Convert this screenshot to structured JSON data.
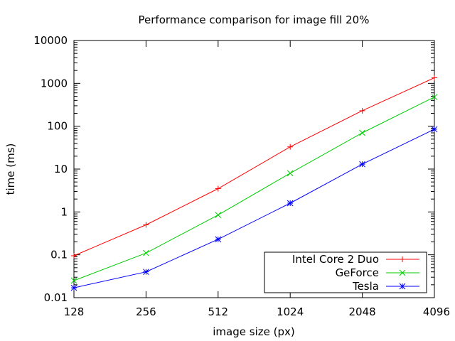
{
  "chart_data": {
    "type": "line",
    "title": "Performance comparison for image fill 20%",
    "xlabel": "image size (px)",
    "ylabel": "time (ms)",
    "x_scale": "log2",
    "y_scale": "log10",
    "x": [
      128,
      256,
      512,
      1024,
      2048,
      4096
    ],
    "x_tick_labels": [
      "128",
      "256",
      "512",
      "1024",
      "2048",
      "4096"
    ],
    "y_tick_labels": [
      "0.01",
      "0.1",
      "1",
      "10",
      "100",
      "1000",
      "10000"
    ],
    "xlim": [
      128,
      4096
    ],
    "ylim": [
      0.01,
      10000
    ],
    "grid": false,
    "legend_position": "bottom-right",
    "series": [
      {
        "name": "Intel Core 2 Duo",
        "color": "#ff0000",
        "marker": "plus",
        "values": [
          0.095,
          0.5,
          3.5,
          33,
          230,
          1350
        ]
      },
      {
        "name": "GeForce",
        "color": "#00cc00",
        "marker": "cross",
        "values": [
          0.025,
          0.11,
          0.85,
          8,
          70,
          480
        ]
      },
      {
        "name": "Tesla",
        "color": "#0000ff",
        "marker": "star",
        "values": [
          0.017,
          0.04,
          0.23,
          1.6,
          13,
          85
        ]
      }
    ]
  }
}
